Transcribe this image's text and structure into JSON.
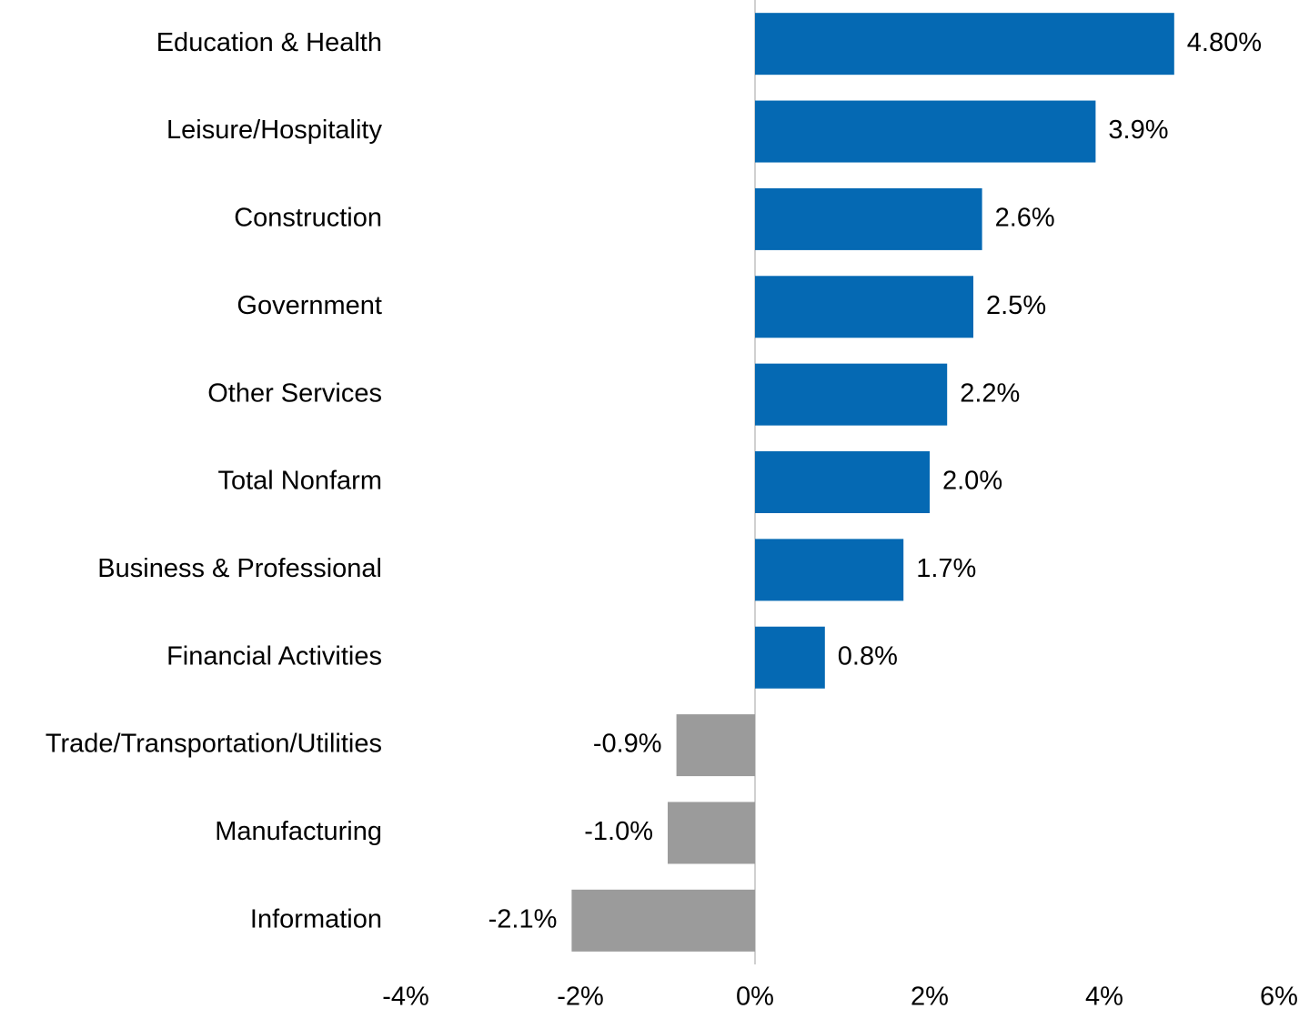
{
  "chart_data": {
    "type": "hbar",
    "categories": [
      "Education & Health",
      "Leisure/Hospitality",
      "Construction",
      "Government",
      "Other Services",
      "Total Nonfarm",
      "Business & Professional",
      "Financial Activities",
      "Trade/Transportation/Utilities",
      "Manufacturing",
      "Information"
    ],
    "values": [
      4.8,
      3.9,
      2.6,
      2.5,
      2.2,
      2.0,
      1.7,
      0.8,
      -0.9,
      -1.0,
      -2.1
    ],
    "value_labels": [
      "4.80%",
      "3.9%",
      "2.6%",
      "2.5%",
      "2.2%",
      "2.0%",
      "1.7%",
      "0.8%",
      "-0.9%",
      "-1.0%",
      "-2.1%"
    ],
    "colors": [
      "#0569b3",
      "#0569b3",
      "#0569b3",
      "#0569b3",
      "#0569b3",
      "#0569b3",
      "#0569b3",
      "#0569b3",
      "#9b9b9b",
      "#9b9b9b",
      "#9b9b9b"
    ],
    "xlim": [
      -4,
      6
    ],
    "xticks": [
      {
        "value": -4,
        "label": "-4%"
      },
      {
        "value": -2,
        "label": "-2%"
      },
      {
        "value": 0,
        "label": "0%"
      },
      {
        "value": 2,
        "label": "2%"
      },
      {
        "value": 4,
        "label": "4%"
      },
      {
        "value": 6,
        "label": "6%"
      }
    ],
    "grid": false
  }
}
